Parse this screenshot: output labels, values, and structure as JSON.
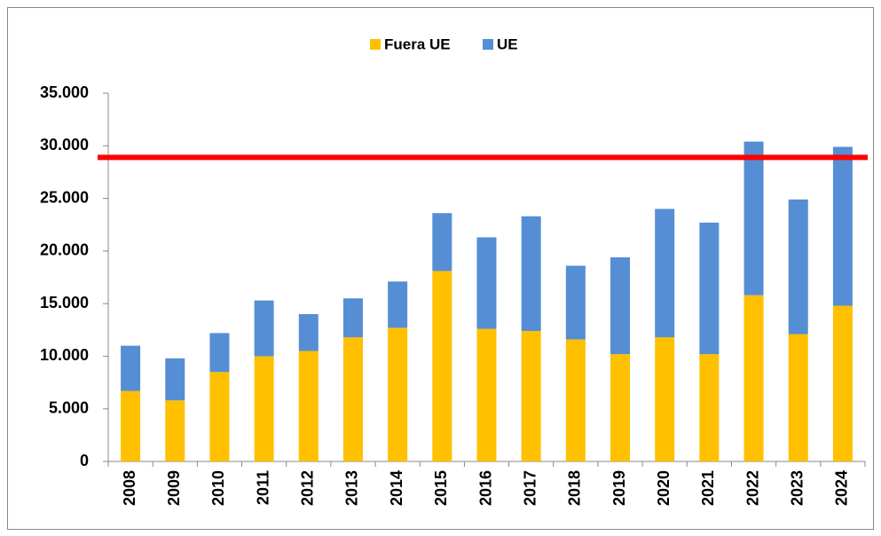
{
  "chart_data": {
    "type": "stacked_bar",
    "categories": [
      "2008",
      "2009",
      "2010",
      "2011",
      "2012",
      "2013",
      "2014",
      "2015",
      "2016",
      "2017",
      "2018",
      "2019",
      "2020",
      "2021",
      "2022",
      "2023",
      "2024"
    ],
    "series": [
      {
        "name": "Fuera UE",
        "color": "#ffc000",
        "values": [
          6700,
          5800,
          8500,
          10000,
          10500,
          11800,
          12700,
          18100,
          12600,
          12400,
          11600,
          10200,
          11800,
          10200,
          15800,
          12100,
          14800
        ]
      },
      {
        "name": "UE",
        "color": "#558ed5",
        "values": [
          4300,
          4000,
          3700,
          5300,
          3500,
          3700,
          4400,
          5500,
          8700,
          10900,
          7000,
          9200,
          12200,
          12500,
          14600,
          12800,
          15100
        ]
      }
    ],
    "ylim": [
      0,
      35000
    ],
    "yticks": [
      0,
      {
        "value": 5000,
        "label": "5.000"
      },
      {
        "value": 10000,
        "label": "10.000"
      },
      {
        "value": 15000,
        "label": "15.000"
      },
      {
        "value": 20000,
        "label": "20.000"
      },
      {
        "value": 25000,
        "label": "25.000"
      },
      {
        "value": 30000,
        "label": "30.000"
      },
      {
        "value": 35000,
        "label": "35.000"
      }
    ],
    "reference_line": {
      "value": 28900,
      "color": "#ff0000"
    },
    "legend": "top"
  }
}
